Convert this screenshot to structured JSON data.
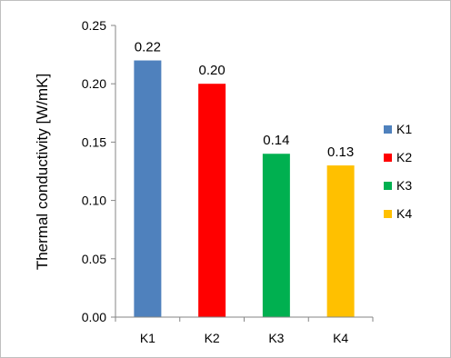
{
  "chart_data": {
    "type": "bar",
    "title": "",
    "xlabel": "",
    "ylabel": "Thermal conductivity [W/mK]",
    "categories": [
      "K1",
      "K2",
      "K3",
      "K4"
    ],
    "values": [
      0.22,
      0.2,
      0.14,
      0.13
    ],
    "data_labels": [
      "0.22",
      "0.20",
      "0.14",
      "0.13"
    ],
    "colors": [
      "#4f81bd",
      "#ff0000",
      "#00b050",
      "#ffc000"
    ],
    "ylim": [
      0,
      0.25
    ],
    "yticks": [
      0,
      0.05,
      0.1,
      0.15,
      0.2,
      0.25
    ],
    "ytick_labels": [
      "0.00",
      "0.05",
      "0.10",
      "0.15",
      "0.20",
      "0.25"
    ],
    "grid": false,
    "legend": {
      "position": "right",
      "entries": [
        "K1",
        "K2",
        "K3",
        "K4"
      ]
    }
  }
}
